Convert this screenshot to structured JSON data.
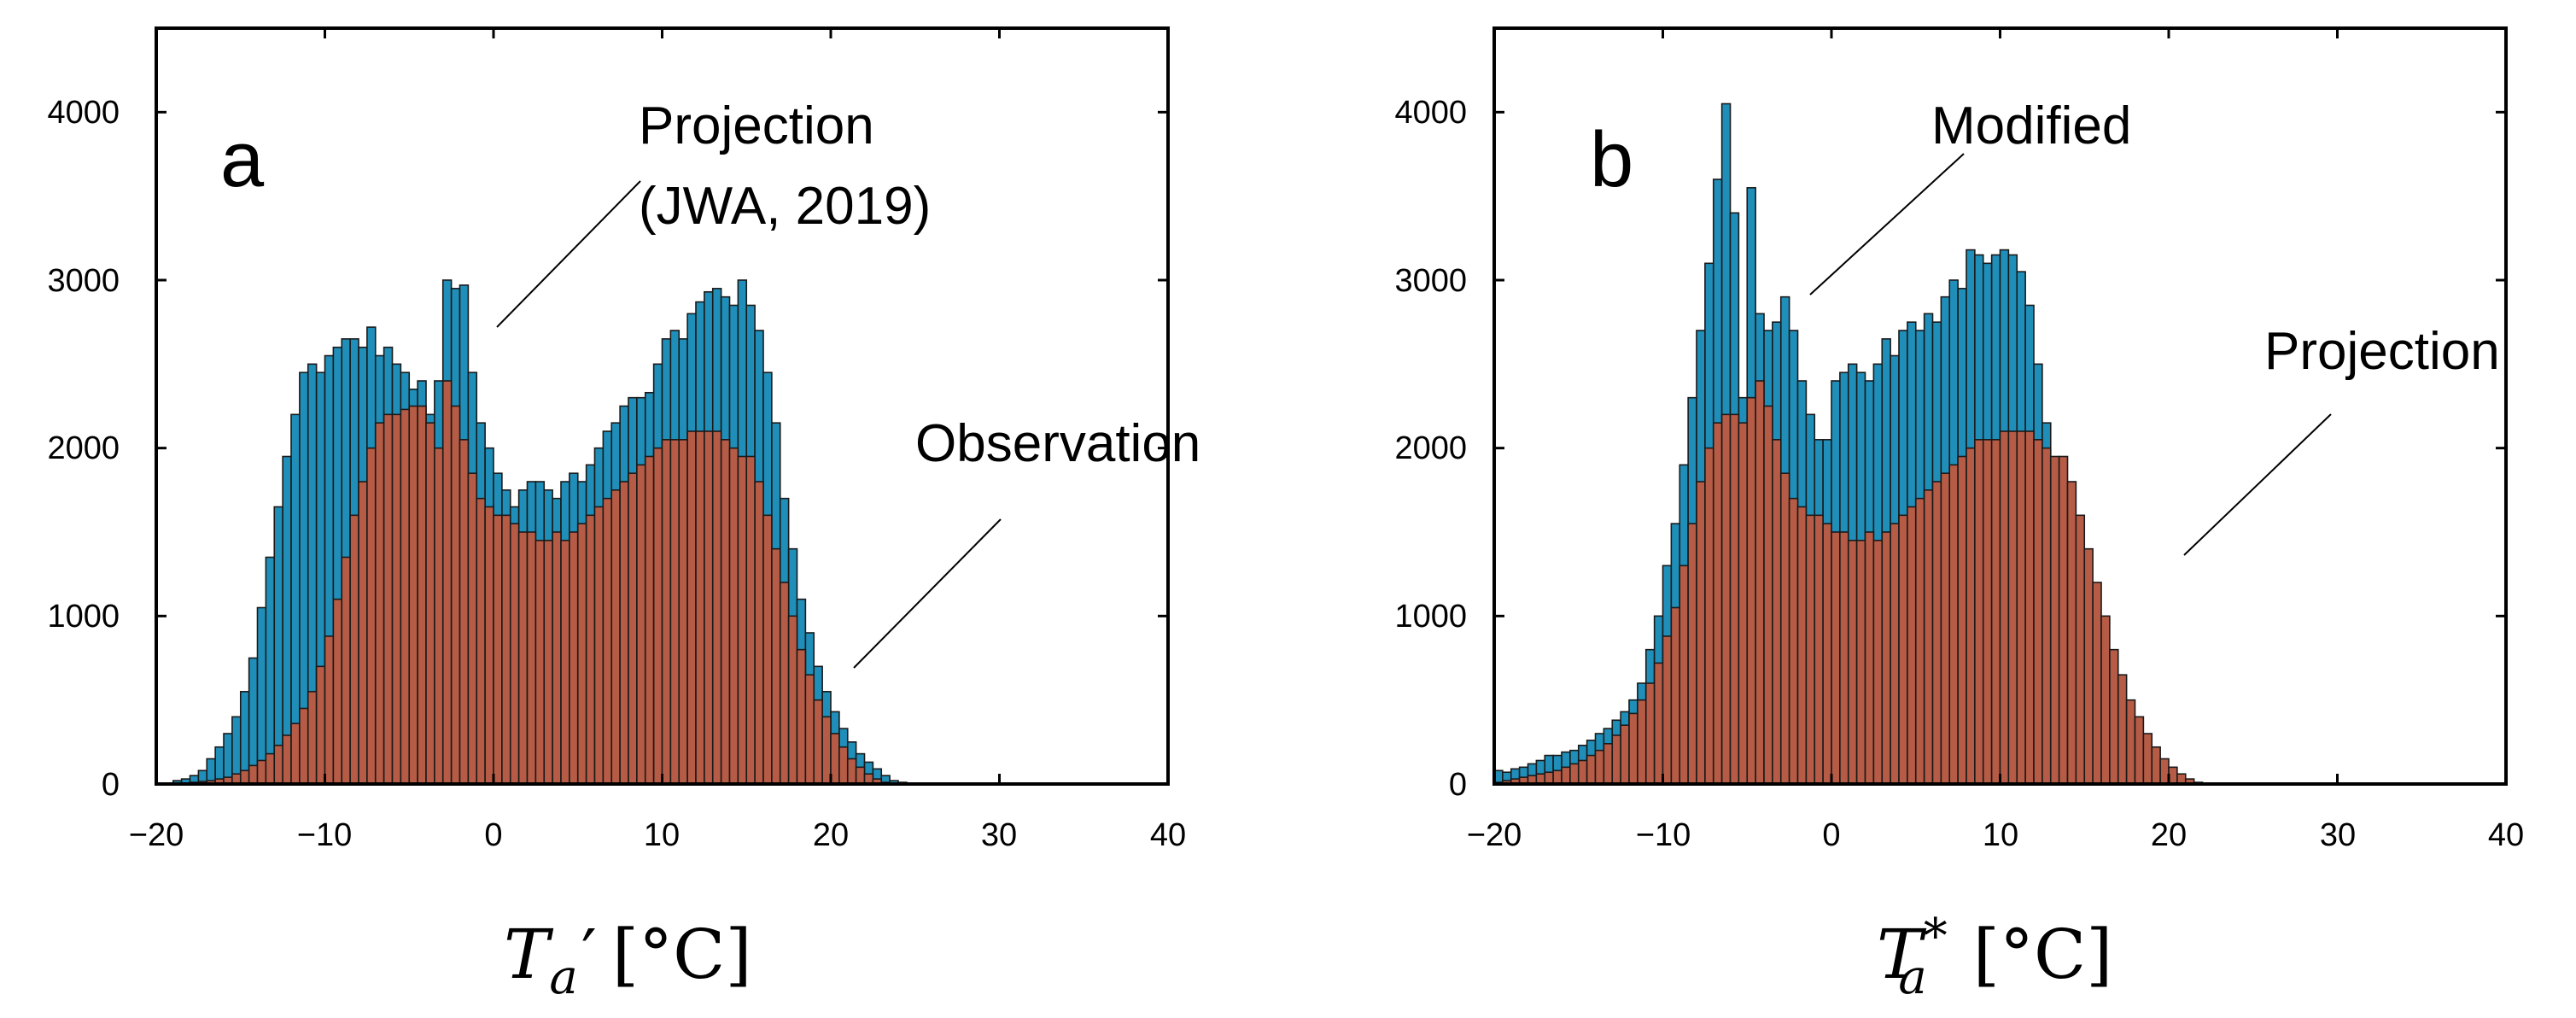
{
  "colors": {
    "projection_a": "#1f8fba",
    "observation": "#b65b45",
    "modified": "#1f8fba",
    "projection_b": "#b65b45",
    "bar_edge": "#1a1a1a"
  },
  "chart_data": [
    {
      "type": "bar",
      "panel_label": "a",
      "xlim": [
        -20,
        40
      ],
      "ylim": [
        0,
        4500
      ],
      "xticks": [
        -20,
        -10,
        0,
        10,
        20,
        30,
        40
      ],
      "xtick_labels": [
        "−20",
        "−10",
        "0",
        "10",
        "20",
        "30",
        "40"
      ],
      "yticks": [
        0,
        1000,
        2000,
        3000,
        4000
      ],
      "ytick_labels": [
        "0",
        "1000",
        "2000",
        "3000",
        "4000"
      ],
      "xlabel_symbol": "T",
      "xlabel_subscript": "a",
      "xlabel_mark": "′",
      "xlabel_unit": "[°C]",
      "grid": false,
      "annotations": [
        {
          "line1": "Projection",
          "line2": "(JWA, 2019)"
        },
        {
          "line1": "Observation"
        }
      ],
      "bin_width": 0.5,
      "bin_start": -19,
      "series": [
        {
          "key": "back",
          "values": [
            20,
            30,
            50,
            80,
            150,
            220,
            300,
            400,
            550,
            750,
            1050,
            1350,
            1650,
            1950,
            2200,
            2450,
            2500,
            2450,
            2550,
            2600,
            2650,
            2650,
            2600,
            2720,
            2550,
            2600,
            2500,
            2450,
            2350,
            2400,
            2200,
            2400,
            3000,
            2950,
            2970,
            2450,
            2150,
            2000,
            1850,
            1750,
            1650,
            1750,
            1800,
            1800,
            1750,
            1700,
            1800,
            1850,
            1800,
            1900,
            2000,
            2100,
            2150,
            2250,
            2300,
            2300,
            2330,
            2500,
            2650,
            2700,
            2650,
            2800,
            2870,
            2930,
            2950,
            2900,
            2850,
            3000,
            2850,
            2700,
            2450,
            2150,
            1700,
            1400,
            1100,
            900,
            700,
            550,
            430,
            330,
            250,
            180,
            130,
            90,
            50,
            20,
            10
          ]
        },
        {
          "key": "front",
          "values": [
            0,
            5,
            10,
            15,
            20,
            30,
            40,
            60,
            80,
            110,
            140,
            180,
            230,
            290,
            360,
            450,
            550,
            700,
            880,
            1100,
            1350,
            1600,
            1800,
            2000,
            2150,
            2200,
            2200,
            2230,
            2250,
            2250,
            2150,
            2000,
            2400,
            2250,
            2050,
            1850,
            1700,
            1650,
            1600,
            1600,
            1550,
            1500,
            1500,
            1450,
            1450,
            1500,
            1450,
            1500,
            1550,
            1600,
            1650,
            1700,
            1750,
            1800,
            1850,
            1900,
            1950,
            2000,
            2050,
            2050,
            2050,
            2100,
            2100,
            2100,
            2100,
            2050,
            2000,
            1950,
            1950,
            1800,
            1600,
            1400,
            1200,
            1000,
            800,
            650,
            500,
            400,
            300,
            220,
            150,
            100,
            60,
            30,
            10,
            5,
            0
          ]
        }
      ]
    },
    {
      "type": "bar",
      "panel_label": "b",
      "xlim": [
        -20,
        40
      ],
      "ylim": [
        0,
        4500
      ],
      "xticks": [
        -20,
        -10,
        0,
        10,
        20,
        30,
        40
      ],
      "xtick_labels": [
        "−20",
        "−10",
        "0",
        "10",
        "20",
        "30",
        "40"
      ],
      "yticks": [
        0,
        1000,
        2000,
        3000,
        4000
      ],
      "ytick_labels": [
        "0",
        "1000",
        "2000",
        "3000",
        "4000"
      ],
      "xlabel_symbol": "T",
      "xlabel_subscript": "a",
      "xlabel_mark": "*",
      "xlabel_unit": "[°C]",
      "grid": false,
      "annotations": [
        {
          "line1": "Modified"
        },
        {
          "line1": "Projection"
        }
      ],
      "bin_width": 0.5,
      "bin_start": -20,
      "series": [
        {
          "key": "back",
          "values": [
            80,
            70,
            90,
            100,
            120,
            140,
            170,
            170,
            190,
            200,
            230,
            260,
            300,
            330,
            380,
            430,
            500,
            600,
            800,
            1000,
            1300,
            1550,
            1900,
            2300,
            2700,
            3100,
            3600,
            4050,
            3400,
            2300,
            3550,
            2800,
            2700,
            2750,
            2900,
            2700,
            2400,
            2200,
            2050,
            2050,
            2400,
            2450,
            2500,
            2450,
            2400,
            2500,
            2650,
            2550,
            2700,
            2750,
            2700,
            2800,
            2750,
            2900,
            3000,
            2950,
            3180,
            3150,
            3100,
            3150,
            3180,
            3150,
            3050,
            2850,
            2500,
            2150,
            1800,
            1500,
            1200,
            950,
            750,
            600,
            480,
            380,
            290,
            210,
            150,
            100,
            60,
            40,
            20,
            10,
            5,
            0,
            0
          ]
        },
        {
          "key": "front",
          "values": [
            10,
            20,
            30,
            40,
            50,
            60,
            70,
            80,
            100,
            120,
            140,
            170,
            200,
            240,
            290,
            350,
            420,
            500,
            600,
            720,
            880,
            1050,
            1300,
            1550,
            1800,
            2000,
            2150,
            2200,
            2200,
            2150,
            2300,
            2400,
            2250,
            2050,
            1850,
            1700,
            1650,
            1600,
            1600,
            1550,
            1500,
            1500,
            1450,
            1450,
            1500,
            1450,
            1500,
            1550,
            1600,
            1650,
            1700,
            1750,
            1800,
            1850,
            1900,
            1950,
            2000,
            2050,
            2050,
            2050,
            2100,
            2100,
            2100,
            2100,
            2050,
            2000,
            1950,
            1950,
            1800,
            1600,
            1400,
            1200,
            1000,
            800,
            650,
            500,
            400,
            300,
            220,
            150,
            100,
            60,
            30,
            10,
            5
          ]
        }
      ]
    }
  ]
}
